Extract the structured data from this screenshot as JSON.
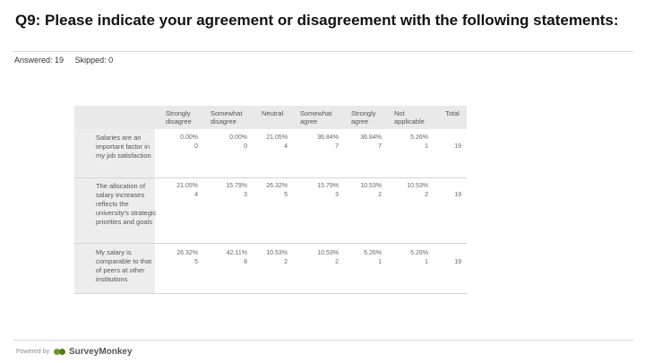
{
  "question": {
    "title": "Q9: Please indicate your agreement or disagreement with the following statements:",
    "answered": "Answered: 19",
    "skipped": "Skipped: 0"
  },
  "table": {
    "columns": [
      "Strongly disagree",
      "Somewhat disagree",
      "Neutral",
      "Somewhat agree",
      "Strongly agree",
      "Not applicable",
      "Total"
    ],
    "rows": [
      {
        "statement": "Salaries are an important factor in my job satisfaction",
        "cells": [
          {
            "pct": "0.00%",
            "count": "0"
          },
          {
            "pct": "0.00%",
            "count": "0"
          },
          {
            "pct": "21.05%",
            "count": "4"
          },
          {
            "pct": "36.84%",
            "count": "7"
          },
          {
            "pct": "36.84%",
            "count": "7"
          },
          {
            "pct": "5.26%",
            "count": "1"
          }
        ],
        "total": "19"
      },
      {
        "statement": "The allocation of salary increases reflects the university's strategic priorities and goals",
        "cells": [
          {
            "pct": "21.05%",
            "count": "4"
          },
          {
            "pct": "15.79%",
            "count": "3"
          },
          {
            "pct": "26.32%",
            "count": "5"
          },
          {
            "pct": "15.79%",
            "count": "3"
          },
          {
            "pct": "10.53%",
            "count": "2"
          },
          {
            "pct": "10.53%",
            "count": "2"
          }
        ],
        "total": "19"
      },
      {
        "statement": "My salary is comparable to that of peers at other institutions",
        "cells": [
          {
            "pct": "26.32%",
            "count": "5"
          },
          {
            "pct": "42.11%",
            "count": "8"
          },
          {
            "pct": "10.53%",
            "count": "2"
          },
          {
            "pct": "10.53%",
            "count": "2"
          },
          {
            "pct": "5.26%",
            "count": "1"
          },
          {
            "pct": "5.26%",
            "count": "1"
          }
        ],
        "total": "19"
      }
    ]
  },
  "footer": {
    "powered_by": "Powered by",
    "brand": "SurveyMonkey"
  }
}
